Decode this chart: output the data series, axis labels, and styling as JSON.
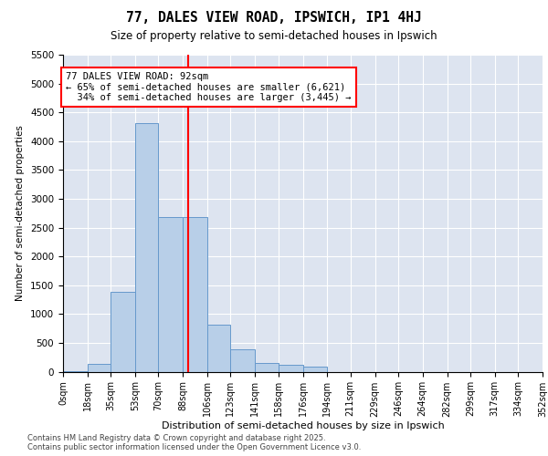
{
  "title1": "77, DALES VIEW ROAD, IPSWICH, IP1 4HJ",
  "title2": "Size of property relative to semi-detached houses in Ipswich",
  "xlabel": "Distribution of semi-detached houses by size in Ipswich",
  "ylabel": "Number of semi-detached properties",
  "property_size": 92,
  "property_label": "77 DALES VIEW ROAD: 92sqm",
  "pct_smaller": 65,
  "n_smaller": 6621,
  "pct_larger": 34,
  "n_larger": 3445,
  "bin_edges": [
    0,
    18,
    35,
    53,
    70,
    88,
    106,
    123,
    141,
    158,
    176,
    194,
    211,
    229,
    246,
    264,
    282,
    299,
    317,
    334,
    352
  ],
  "bar_heights": [
    10,
    130,
    1380,
    4320,
    2680,
    2680,
    820,
    390,
    155,
    115,
    80,
    0,
    0,
    0,
    0,
    0,
    0,
    0,
    0,
    0
  ],
  "bar_color": "#b8cfe8",
  "bar_edge_color": "#6699cc",
  "vline_color": "red",
  "vline_x": 92,
  "ylim": [
    0,
    5500
  ],
  "yticks": [
    0,
    500,
    1000,
    1500,
    2000,
    2500,
    3000,
    3500,
    4000,
    4500,
    5000,
    5500
  ],
  "background_color": "#dde4f0",
  "grid_color": "#ffffff",
  "footer_line1": "Contains HM Land Registry data © Crown copyright and database right 2025.",
  "footer_line2": "Contains public sector information licensed under the Open Government Licence v3.0."
}
